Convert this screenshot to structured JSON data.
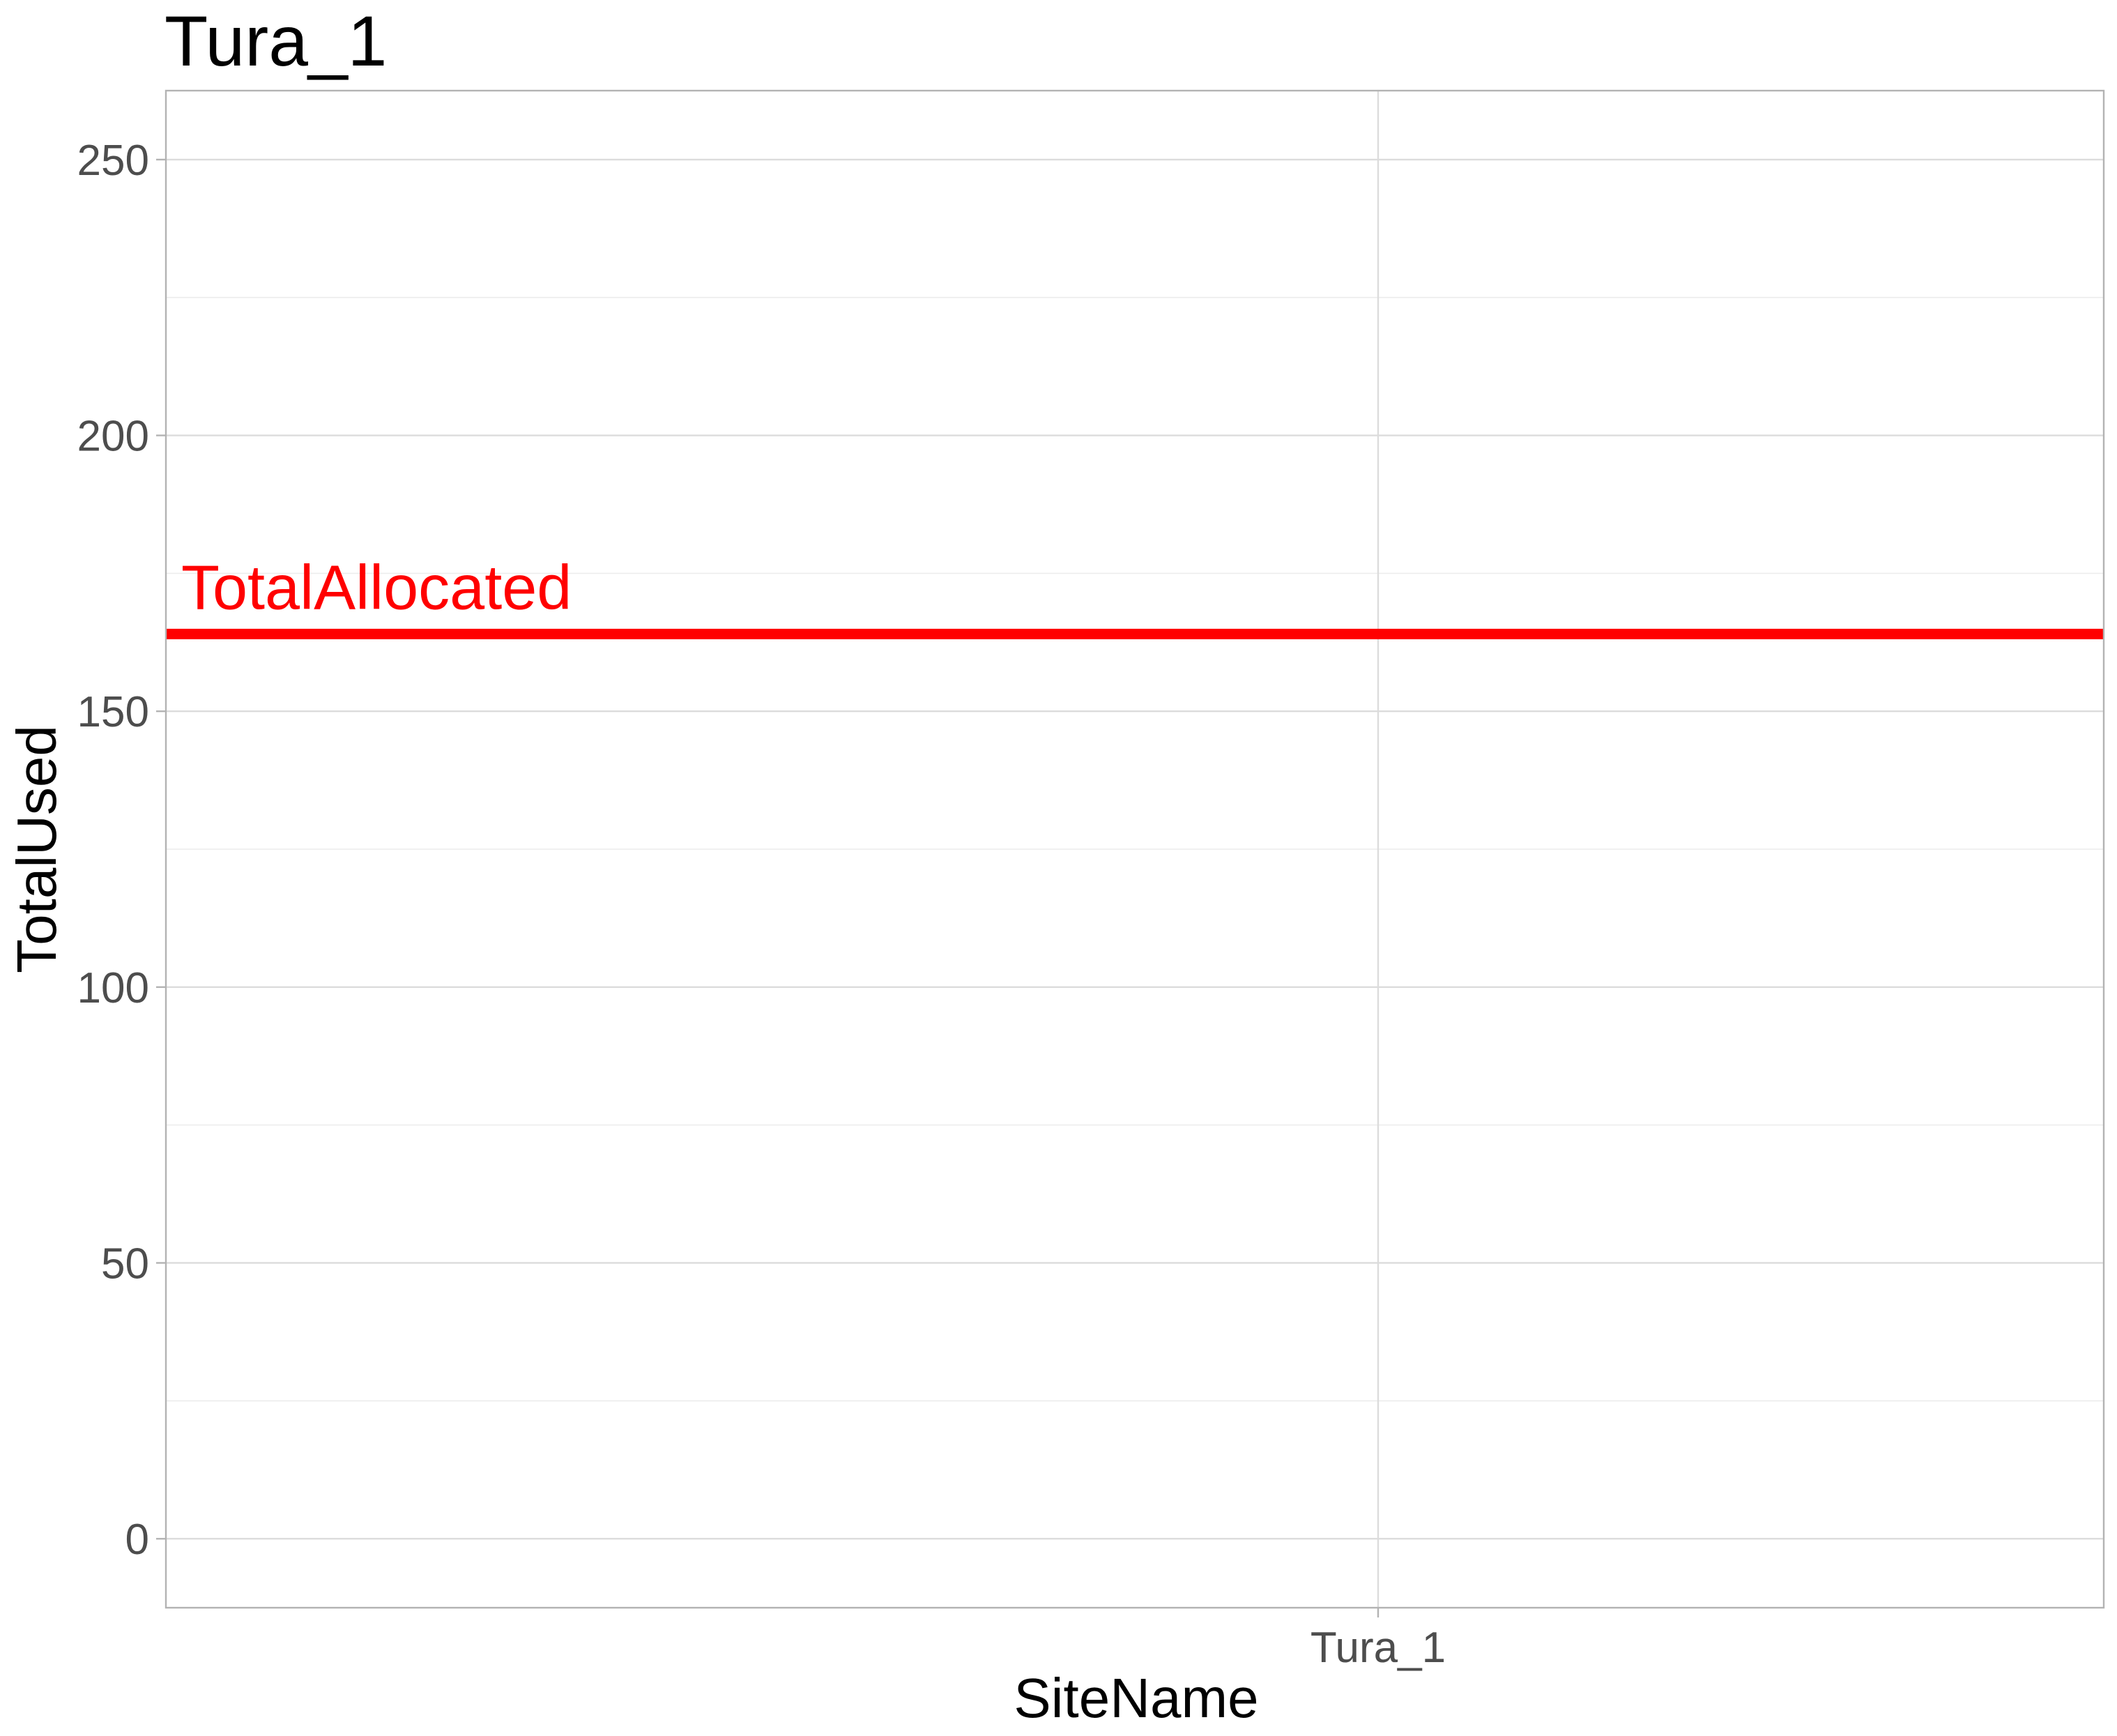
{
  "chart_data": {
    "type": "line",
    "title": "Tura_1",
    "xlabel": "SiteName",
    "ylabel": "TotalUsed",
    "categories": [
      "Tura_1"
    ],
    "ylim": [
      -12.5,
      262.5
    ],
    "yticks": [
      0,
      50,
      100,
      150,
      200,
      250
    ],
    "yticks_minor": [
      25,
      75,
      125,
      175,
      225
    ],
    "grid": true,
    "series": [],
    "reference_lines": [
      {
        "orientation": "horizontal",
        "y": 164,
        "label": "TotalAllocated",
        "color": "#ff0000"
      }
    ]
  }
}
